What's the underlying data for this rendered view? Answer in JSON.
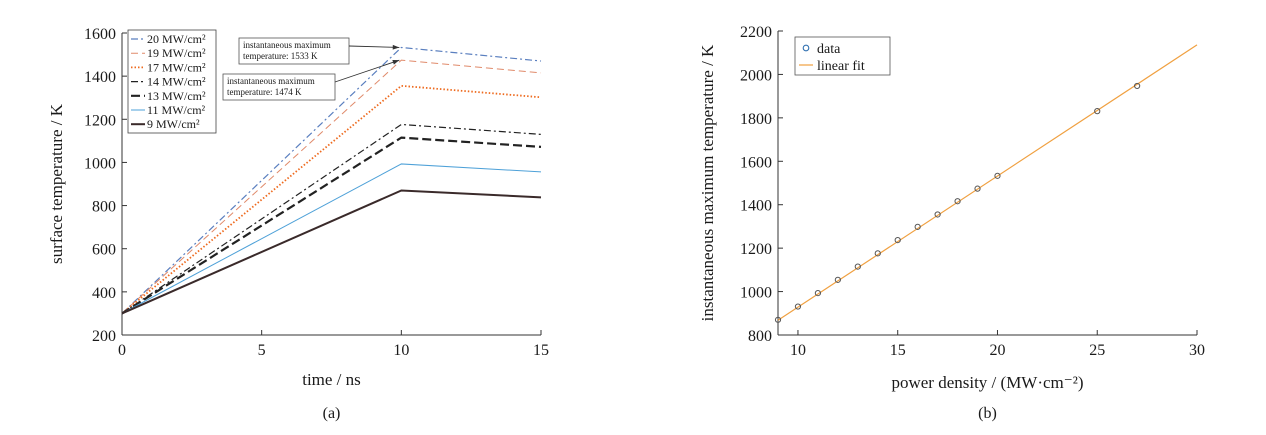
{
  "chart_data": [
    {
      "type": "line",
      "xlabel": "time / ns",
      "ylabel": "surface temperature / K",
      "xlim": [
        0,
        15
      ],
      "ylim": [
        200,
        1600
      ],
      "xticks": [
        0,
        5,
        10,
        15
      ],
      "yticks": [
        200,
        400,
        600,
        800,
        1000,
        1200,
        1400,
        1600
      ],
      "grid": false,
      "legend_position": "top-left",
      "caption": "(a)",
      "series": [
        {
          "name": "20 MW/cm²",
          "color": "#5a7fbf",
          "dash": "dashdot",
          "x": [
            0,
            10,
            15
          ],
          "y": [
            300,
            1533,
            1470
          ]
        },
        {
          "name": "19 MW/cm²",
          "color": "#e08a6a",
          "dash": "dashed",
          "x": [
            0,
            10,
            15
          ],
          "y": [
            300,
            1474,
            1415
          ]
        },
        {
          "name": "17 MW/cm²",
          "color": "#ee6a1e",
          "dash": "dotted",
          "x": [
            0,
            10,
            15
          ],
          "y": [
            300,
            1355,
            1302
          ]
        },
        {
          "name": "14 MW/cm²",
          "color": "#222222",
          "dash": "dashdot",
          "x": [
            0,
            10,
            15
          ],
          "y": [
            300,
            1176,
            1130
          ]
        },
        {
          "name": "13 MW/cm²",
          "color": "#222222",
          "dash": "dashedbold",
          "x": [
            0,
            10,
            15
          ],
          "y": [
            300,
            1115,
            1072
          ]
        },
        {
          "name": "11 MW/cm²",
          "color": "#4ea1d8",
          "dash": "solid",
          "x": [
            0,
            10,
            15
          ],
          "y": [
            300,
            993,
            956
          ]
        },
        {
          "name": "9 MW/cm²",
          "color": "#3a2a2a",
          "dash": "solidbold",
          "x": [
            0,
            10,
            15
          ],
          "y": [
            300,
            870,
            838
          ]
        }
      ],
      "annotations": [
        {
          "line1": "instantaneous maximum",
          "line2": "temperature: 1533 K"
        },
        {
          "line1": "instantaneous maximum",
          "line2": "temperature: 1474 K"
        }
      ]
    },
    {
      "type": "scatter",
      "xlabel": "power density / (MW·cm⁻²)",
      "ylabel": "instantaneous maximum temperature / K",
      "xlim": [
        9,
        30
      ],
      "ylim": [
        800,
        2200
      ],
      "xticks": [
        10,
        15,
        20,
        25,
        30
      ],
      "yticks": [
        800,
        1000,
        1200,
        1400,
        1600,
        1800,
        2000,
        2200
      ],
      "grid": false,
      "legend_position": "top-left",
      "caption": "(b)",
      "series": [
        {
          "name": "data",
          "color": "#2f6fb0",
          "marker": "circle",
          "x": [
            9,
            10,
            11,
            12,
            13,
            14,
            15,
            16,
            17,
            18,
            19,
            20,
            25,
            27
          ],
          "y": [
            870,
            931,
            993,
            1054,
            1115,
            1176,
            1237,
            1298,
            1355,
            1416,
            1474,
            1533,
            1831,
            1947
          ]
        },
        {
          "name": "linear fit",
          "color": "#f0a040",
          "x": [
            9,
            30
          ],
          "y": [
            868,
            2136
          ]
        }
      ]
    }
  ]
}
